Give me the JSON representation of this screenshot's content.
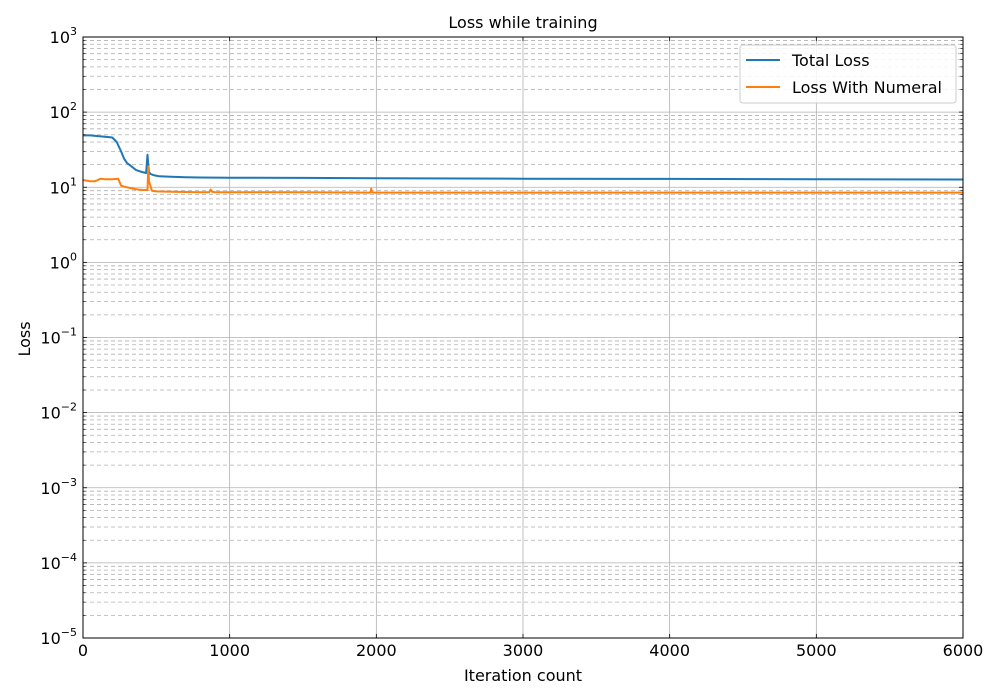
{
  "chart_data": {
    "type": "line",
    "title": "Loss while training",
    "xlabel": "Iteration count",
    "ylabel": "Loss",
    "xlim": [
      0,
      6000
    ],
    "ylim": [
      1e-05,
      1000
    ],
    "yscale": "log",
    "grid": true,
    "minor_grid": true,
    "legend_position": "top-right",
    "x_ticks": [
      "0",
      "1000",
      "2000",
      "3000",
      "4000",
      "5000",
      "6000"
    ],
    "y_ticks": [
      {
        "base": "10",
        "exp": "−5"
      },
      {
        "base": "10",
        "exp": "−4"
      },
      {
        "base": "10",
        "exp": "−3"
      },
      {
        "base": "10",
        "exp": "−2"
      },
      {
        "base": "10",
        "exp": "−1"
      },
      {
        "base": "10",
        "exp": "0"
      },
      {
        "base": "10",
        "exp": "1"
      },
      {
        "base": "10",
        "exp": "2"
      },
      {
        "base": "10",
        "exp": "3"
      }
    ],
    "series": [
      {
        "name": "Total Loss",
        "color": "#1f77b4",
        "x": [
          0,
          50,
          100,
          150,
          200,
          230,
          260,
          280,
          300,
          330,
          360,
          400,
          430,
          440,
          445,
          450,
          460,
          480,
          520,
          600,
          700,
          800,
          1000,
          1500,
          2000,
          3000,
          4000,
          5000,
          6000
        ],
        "y": [
          49,
          49,
          48,
          47,
          46,
          40,
          30,
          24,
          21,
          19,
          17,
          16,
          15.5,
          27,
          20,
          16,
          15,
          14.5,
          14,
          13.8,
          13.6,
          13.5,
          13.4,
          13.3,
          13.2,
          13.0,
          12.9,
          12.8,
          12.7
        ]
      },
      {
        "name": "Loss With Numeral",
        "color": "#ff7f0e",
        "x": [
          0,
          50,
          80,
          100,
          120,
          150,
          200,
          240,
          260,
          280,
          300,
          340,
          380,
          420,
          440,
          445,
          450,
          470,
          500,
          600,
          800,
          860,
          870,
          880,
          900,
          1200,
          1500,
          1960,
          1965,
          1970,
          1980,
          2000,
          3000,
          4000,
          5000,
          6000
        ],
        "y": [
          12.5,
          12.0,
          12.0,
          12.5,
          13.0,
          12.8,
          12.8,
          13.0,
          10.5,
          10.2,
          10.0,
          9.6,
          9.3,
          9.2,
          9.2,
          19,
          12,
          9.0,
          8.8,
          8.7,
          8.6,
          8.6,
          9.3,
          8.7,
          8.6,
          8.6,
          8.6,
          8.5,
          9.6,
          8.6,
          8.5,
          8.5,
          8.5,
          8.5,
          8.5,
          8.5
        ]
      }
    ]
  }
}
